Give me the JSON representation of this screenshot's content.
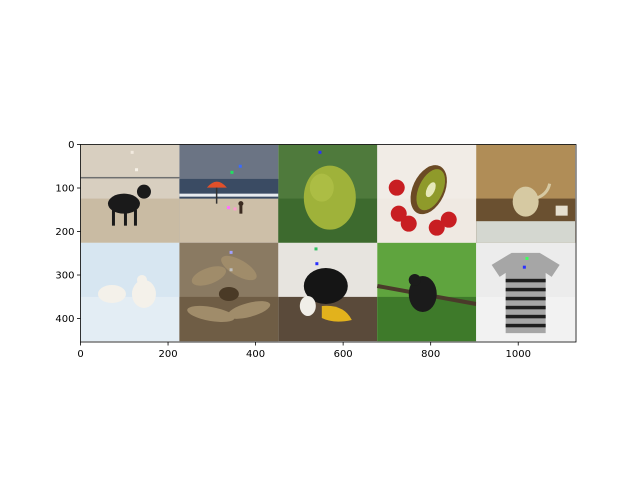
{
  "chart_data": {
    "type": "image-grid",
    "grid_on": false,
    "rows": 2,
    "cols": 5,
    "tile_size": 226,
    "xlim": [
      0,
      1132
    ],
    "ylim": [
      454,
      0
    ],
    "x_ticks": [
      0,
      200,
      400,
      600,
      800,
      1000
    ],
    "y_ticks": [
      0,
      100,
      200,
      300,
      400
    ],
    "tiles": [
      {
        "row": 0,
        "col": 0,
        "subject": "black dog on beach",
        "palette": {
          "sky": "#d8cfc0",
          "ground": "#c9bba3",
          "subject": "#1a1a1a"
        },
        "markers": [
          {
            "x": 118,
            "y": 18,
            "color": "#f2eadf"
          },
          {
            "x": 128,
            "y": 58,
            "color": "#f7f2e8"
          }
        ]
      },
      {
        "row": 0,
        "col": 1,
        "subject": "beach with people and umbrellas",
        "palette": {
          "sky": "#6b7484",
          "ground": "#cdbfa8",
          "subject": "#3a4b63"
        },
        "markers": [
          {
            "x": 365,
            "y": 50,
            "color": "#3a6aff"
          },
          {
            "x": 346,
            "y": 64,
            "color": "#20e060"
          },
          {
            "x": 338,
            "y": 145,
            "color": "#ff70ff"
          },
          {
            "x": 353,
            "y": 148,
            "color": "#ff9ad0"
          }
        ]
      },
      {
        "row": 0,
        "col": 2,
        "subject": "jackfruit",
        "palette": {
          "sky": "#4f7a3c",
          "ground": "#3d6a2e",
          "subject": "#9fb23a"
        },
        "markers": [
          {
            "x": 547,
            "y": 18,
            "color": "#2a30ff"
          }
        ]
      },
      {
        "row": 0,
        "col": 3,
        "subject": "kiwi and strawberries",
        "palette": {
          "sky": "#f1ece6",
          "ground": "#efe9e2",
          "subject": "#8f9a2a"
        },
        "markers": []
      },
      {
        "row": 0,
        "col": 4,
        "subject": "teapot in display case",
        "palette": {
          "sky": "#b08d57",
          "ground": "#6a5030",
          "subject": "#d6c9a2"
        },
        "markers": []
      },
      {
        "row": 1,
        "col": 0,
        "subject": "polar bears in snow",
        "palette": {
          "sky": "#d7e6f1",
          "ground": "#e3edf4",
          "subject": "#f4f1ea"
        },
        "markers": []
      },
      {
        "row": 1,
        "col": 1,
        "subject": "toad among dry leaves",
        "palette": {
          "sky": "#8a7a62",
          "ground": "#6f5d45",
          "subject": "#b9a98b"
        },
        "markers": [
          {
            "x": 344,
            "y": 248,
            "color": "#a0a0ff"
          },
          {
            "x": 344,
            "y": 288,
            "color": "#c0c0c0"
          }
        ]
      },
      {
        "row": 1,
        "col": 2,
        "subject": "hornbill bird",
        "palette": {
          "sky": "#e7e4df",
          "ground": "#5a4a3a",
          "subject": "#151515"
        },
        "markers": [
          {
            "x": 538,
            "y": 240,
            "color": "#30c060"
          },
          {
            "x": 540,
            "y": 274,
            "color": "#2a30ff"
          }
        ]
      },
      {
        "row": 1,
        "col": 3,
        "subject": "monkey in tree",
        "palette": {
          "sky": "#5fa43e",
          "ground": "#3e7a2a",
          "subject": "#1b1b1b"
        },
        "markers": []
      },
      {
        "row": 1,
        "col": 4,
        "subject": "striped gray t-shirt",
        "palette": {
          "sky": "#ececec",
          "ground": "#f2f2f2",
          "subject": "#a6a6a6"
        },
        "markers": [
          {
            "x": 1020,
            "y": 262,
            "color": "#40ff60"
          },
          {
            "x": 1014,
            "y": 282,
            "color": "#2a30ff"
          }
        ]
      }
    ]
  }
}
